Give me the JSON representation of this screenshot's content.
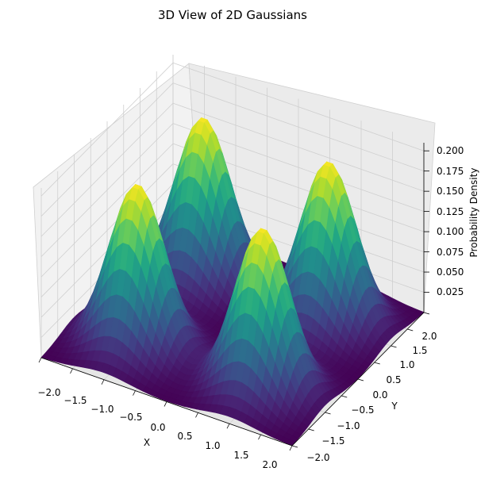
{
  "chart_data": {
    "type": "surface",
    "title": "3D View of 2D Gaussians",
    "xlabel": "X",
    "ylabel": "Y",
    "zlabel": "Probability Density",
    "xlim": [
      -2,
      2
    ],
    "ylim": [
      -2,
      2
    ],
    "zlim": [
      0,
      0.21
    ],
    "x_ticks": [
      "−2.0",
      "−1.5",
      "−1.0",
      "−0.5",
      "0.0",
      "0.5",
      "1.0",
      "1.5",
      "2.0"
    ],
    "y_ticks": [
      "−2.0",
      "−1.5",
      "−1.0",
      "−0.5",
      "0.0",
      "0.5",
      "1.0",
      "1.5",
      "2.0"
    ],
    "z_ticks": [
      "0.025",
      "0.050",
      "0.075",
      "0.100",
      "0.125",
      "0.150",
      "0.175",
      "0.200"
    ],
    "colormap": "viridis",
    "grid": true,
    "series": [
      {
        "mean": [
          1,
          1
        ],
        "std": 0.4,
        "amplitude": 0.2
      },
      {
        "mean": [
          -1,
          1
        ],
        "std": 0.4,
        "amplitude": 0.2
      },
      {
        "mean": [
          -1,
          -1
        ],
        "std": 0.4,
        "amplitude": 0.2
      },
      {
        "mean": [
          1,
          -1
        ],
        "std": 0.4,
        "amplitude": 0.2
      }
    ]
  }
}
